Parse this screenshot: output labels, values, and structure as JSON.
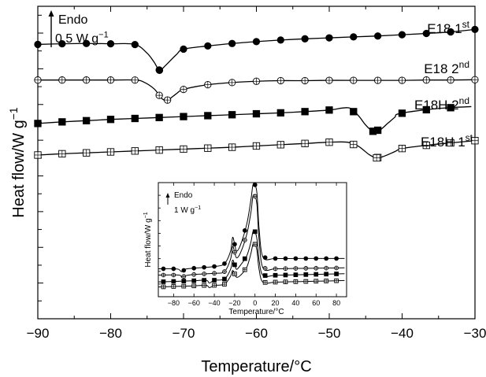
{
  "chart_data": [
    {
      "type": "line",
      "xlabel": "Temperature/°C",
      "ylabel": "Heat flow/W g",
      "ylabel_sup": "−1",
      "xlim": [
        -90,
        -30
      ],
      "x_ticks": [
        -90,
        -80,
        -70,
        -60,
        -50,
        -40,
        -30
      ],
      "x_tick_labels": [
        "−90",
        "−80",
        "−70",
        "−60",
        "−50",
        "−40",
        "−30"
      ],
      "ylim": [
        0,
        100
      ],
      "grid": false,
      "scale_bar": {
        "label": "Endo",
        "value": "0.5 W g",
        "value_sup": "−1",
        "length": 10.4
      },
      "series": [
        {
          "name": "E18 1",
          "name_sup": "st",
          "marker": "filled-circle",
          "x": [
            -90,
            -86.7,
            -83.3,
            -80,
            -76.7,
            -75,
            -74,
            -73.3,
            -72.5,
            -71,
            -70,
            -66.7,
            -63.3,
            -60,
            -56.7,
            -53.3,
            -50,
            -46.7,
            -43.3,
            -40,
            -36.7,
            -33.3,
            -30
          ],
          "y": [
            87.8,
            88,
            88.1,
            88,
            87.8,
            85,
            82,
            79.5,
            81,
            84.5,
            86.3,
            87.3,
            88.1,
            88.7,
            89.2,
            89.6,
            89.9,
            90.2,
            90.5,
            90.9,
            91.3,
            91.8,
            92.6
          ]
        },
        {
          "name": "E18 2",
          "name_sup": "nd",
          "marker": "open-circle",
          "x": [
            -90,
            -86.7,
            -83.3,
            -80,
            -76.7,
            -75.5,
            -74,
            -73,
            -72.2,
            -71,
            -70,
            -66.7,
            -63.3,
            -60,
            -56.7,
            -53.3,
            -50,
            -46.7,
            -43.3,
            -40,
            -36.7,
            -33.3,
            -30
          ],
          "y": [
            76.4,
            76.4,
            76.4,
            76.4,
            76.4,
            75.8,
            73.5,
            70.5,
            70,
            72,
            73.4,
            74.9,
            75.6,
            76,
            76.2,
            76.2,
            76.3,
            76.3,
            76.3,
            76.3,
            76.4,
            76.4,
            76.5
          ]
        },
        {
          "name": "E18H 2",
          "name_sup": "nd",
          "marker": "filled-square",
          "x": [
            -90,
            -86.7,
            -83.3,
            -80,
            -76.7,
            -73.3,
            -70,
            -66.7,
            -63.3,
            -60,
            -56.7,
            -53.3,
            -50,
            -47.3,
            -46,
            -45,
            -44,
            -43,
            -42,
            -41,
            -40.5,
            -37.1,
            -33.8,
            -30.5
          ],
          "y": [
            62.5,
            63,
            63.4,
            63.8,
            64.1,
            64.4,
            64.7,
            65,
            65.3,
            65.6,
            65.9,
            66.3,
            66.8,
            67.5,
            65,
            62,
            60,
            60.5,
            62.5,
            64.5,
            65.6,
            66.8,
            67.5,
            67.9
          ]
        },
        {
          "name": "E18H 1",
          "name_sup": "st",
          "marker": "open-square",
          "x": [
            -90,
            -86.7,
            -83.3,
            -80,
            -76.7,
            -73.3,
            -70,
            -66.7,
            -63.3,
            -60,
            -56.7,
            -53.3,
            -50,
            -47.5,
            -46,
            -44.5,
            -43.5,
            -42.5,
            -41,
            -40,
            -36.7,
            -33.3,
            -30
          ],
          "y": [
            52.4,
            52.8,
            53.1,
            53.4,
            53.7,
            54,
            54.3,
            54.6,
            54.9,
            55.3,
            55.7,
            56.1,
            56.5,
            56.5,
            55.2,
            52.5,
            51.5,
            52,
            53.5,
            54.5,
            55.5,
            56.3,
            57
          ]
        }
      ]
    },
    {
      "type": "line",
      "role": "inset",
      "xlabel": "Temperature/°C",
      "ylabel": "Heat flow/W g",
      "ylabel_sup": "−1",
      "xlim": [
        -95,
        90
      ],
      "x_ticks": [
        -80,
        -60,
        -40,
        -20,
        0,
        20,
        40,
        60,
        80
      ],
      "x_tick_labels": [
        "−80",
        "−60",
        "−40",
        "−20",
        "0",
        "20",
        "40",
        "60",
        "80"
      ],
      "ylim": [
        0,
        100
      ],
      "scale_bar": {
        "label": "Endo",
        "value": "1 W g",
        "value_sup": "−1",
        "length": 5.7
      },
      "series": [
        {
          "marker": "filled-circle",
          "x": [
            -95,
            -80,
            -75,
            -72,
            -68,
            -60,
            -40,
            -30,
            -24,
            -22,
            -20,
            -18,
            -14,
            -8,
            -4,
            -2,
            0,
            2,
            4,
            8,
            20,
            40,
            60,
            80,
            88
          ],
          "y": [
            24.5,
            24.5,
            24,
            22,
            24.2,
            25,
            26.5,
            29,
            40,
            52,
            46,
            40,
            46,
            64,
            85,
            98,
            98,
            90,
            60,
            34.5,
            33.5,
            33.5,
            33.5,
            33.5,
            33.5
          ]
        },
        {
          "marker": "open-circle",
          "x": [
            -95,
            -75,
            -72,
            -68,
            -60,
            -40,
            -30,
            -24,
            -22,
            -20,
            -18,
            -14,
            -8,
            -4,
            -2,
            0,
            2,
            4,
            8,
            20,
            40,
            60,
            80,
            88
          ],
          "y": [
            19,
            19,
            17,
            18.5,
            19.5,
            20.5,
            22,
            33,
            44,
            39,
            34,
            39,
            55,
            74,
            88,
            88,
            80,
            50,
            25,
            24.5,
            24.8,
            25,
            25.2,
            25.3
          ]
        },
        {
          "marker": "filled-square",
          "x": [
            -95,
            -80,
            -60,
            -48,
            -45,
            -42,
            -40,
            -30,
            -24,
            -22,
            -20,
            -18,
            -14,
            -8,
            -4,
            -2,
            0,
            2,
            4,
            8,
            20,
            40,
            60,
            80,
            88
          ],
          "y": [
            13,
            13.4,
            14,
            14.5,
            12,
            13.5,
            14.5,
            15.5,
            24,
            32,
            28,
            24,
            28,
            36,
            48,
            57,
            57,
            50,
            32,
            18.5,
            18.8,
            19.2,
            19.6,
            20,
            20.2
          ]
        },
        {
          "marker": "open-square",
          "x": [
            -95,
            -80,
            -60,
            -48,
            -45,
            -42,
            -40,
            -30,
            -24,
            -22,
            -20,
            -18,
            -14,
            -8,
            -4,
            -2,
            0,
            2,
            4,
            8,
            20,
            40,
            60,
            80,
            88
          ],
          "y": [
            8.5,
            9,
            9.5,
            10,
            8,
            9,
            10,
            11,
            18,
            23,
            20,
            17,
            19,
            26,
            38,
            46,
            46,
            40,
            24,
            12.5,
            12.8,
            13.2,
            13.6,
            14,
            14.2
          ]
        }
      ]
    }
  ]
}
